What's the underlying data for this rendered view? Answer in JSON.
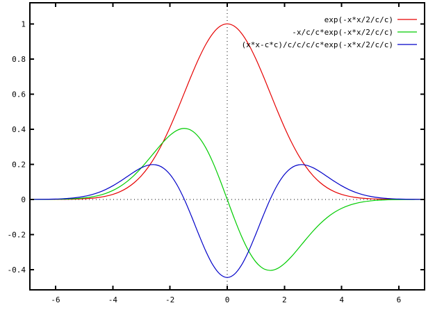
{
  "chart_data": {
    "type": "line",
    "title": "",
    "xlabel": "",
    "ylabel": "",
    "xlim": [
      -6.9,
      6.9
    ],
    "ylim": [
      -0.515,
      1.12
    ],
    "x_ticks": [
      -6,
      -4,
      -2,
      0,
      2,
      4,
      6
    ],
    "x_tick_labels": [
      "-6",
      "-4",
      "-2",
      "0",
      "2",
      "4",
      "6"
    ],
    "y_ticks": [
      -0.4,
      -0.2,
      0,
      0.2,
      0.4,
      0.6,
      0.8,
      1
    ],
    "y_tick_labels": [
      "-0.4",
      "-0.2",
      "0",
      "0.2",
      "0.4",
      "0.6",
      "0.8",
      "1"
    ],
    "grid": false,
    "zeroaxis_dotted": true,
    "ticks_mirrored_inward": true,
    "legend_position": "top-right-inside",
    "background_color": "#ffffff",
    "axis_color": "#000000",
    "parameter_c": 1.5,
    "x": [
      -6.92,
      -6.75,
      -6.5,
      -6.25,
      -6,
      -5.75,
      -5.5,
      -5.25,
      -5,
      -4.75,
      -4.5,
      -4.25,
      -4,
      -3.75,
      -3.5,
      -3.25,
      -3,
      -2.75,
      -2.5,
      -2.25,
      -2,
      -1.75,
      -1.5,
      -1.25,
      -1,
      -0.75,
      -0.5,
      -0.25,
      0,
      0.25,
      0.5,
      0.75,
      1,
      1.25,
      1.5,
      1.75,
      2,
      2.25,
      2.5,
      2.75,
      3,
      3.25,
      3.5,
      3.75,
      4,
      4.25,
      4.5,
      4.75,
      5,
      5.25,
      5.5,
      5.75,
      6,
      6.25,
      6.5,
      6.75,
      6.92
    ],
    "series": [
      {
        "name": "exp(-x*x/2/c/c)",
        "color": "#e60000",
        "values": [
          2e-05,
          4e-05,
          8e-05,
          0.00017,
          0.00034,
          0.00064,
          0.0012,
          0.00219,
          0.00387,
          0.00665,
          0.01111,
          0.01808,
          0.02856,
          0.04394,
          0.06572,
          0.09563,
          0.13534,
          0.1863,
          0.24935,
          0.32465,
          0.41111,
          0.50637,
          0.60653,
          0.70665,
          0.80074,
          0.8825,
          0.94596,
          0.98621,
          1,
          0.98621,
          0.94596,
          0.8825,
          0.80074,
          0.70665,
          0.60653,
          0.50637,
          0.41111,
          0.32465,
          0.24935,
          0.1863,
          0.13534,
          0.09563,
          0.06572,
          0.04394,
          0.02856,
          0.01808,
          0.01111,
          0.00665,
          0.00387,
          0.00219,
          0.0012,
          0.00064,
          0.00034,
          0.00017,
          8e-05,
          4e-05,
          2e-05
        ]
      },
      {
        "name": "-x/c/c*exp(-x*x/2/c/c)",
        "color": "#00cc00",
        "values": [
          7e-05,
          0.00012,
          0.00024,
          0.00047,
          0.00089,
          0.00165,
          0.00293,
          0.00511,
          0.0086,
          0.01404,
          0.02222,
          0.03415,
          0.05077,
          0.07323,
          0.10223,
          0.13813,
          0.18045,
          0.2277,
          0.27706,
          0.32465,
          0.36543,
          0.39384,
          0.40435,
          0.39258,
          0.35588,
          0.29417,
          0.21021,
          0.10958,
          0,
          -0.10958,
          -0.21021,
          -0.29417,
          -0.35588,
          -0.39258,
          -0.40435,
          -0.39384,
          -0.36543,
          -0.32465,
          -0.27706,
          -0.2277,
          -0.18045,
          -0.13813,
          -0.10223,
          -0.07323,
          -0.05077,
          -0.03415,
          -0.02222,
          -0.01404,
          -0.0086,
          -0.00511,
          -0.00293,
          -0.00165,
          -0.00089,
          -0.00047,
          -0.00024,
          -0.00012,
          -7e-05
        ]
      },
      {
        "name": "(x*x-c*c)/c/c/c/c*exp(-x*x/2/c/c)",
        "color": "#0000c8",
        "values": [
          0.00022,
          0.00034,
          0.00066,
          0.00124,
          0.00223,
          0.00393,
          0.00664,
          0.01095,
          0.01739,
          0.02668,
          0.0395,
          0.05647,
          0.07757,
          0.10252,
          0.12982,
          0.15702,
          0.18045,
          0.1955,
          0.19702,
          0.18036,
          0.14211,
          0.08127,
          0,
          -0.09596,
          -0.19771,
          -0.29417,
          -0.37371,
          -0.42614,
          -0.44444,
          -0.42614,
          -0.37371,
          -0.29417,
          -0.19771,
          -0.09596,
          0,
          0.08127,
          0.14211,
          0.18036,
          0.19702,
          0.1955,
          0.18045,
          0.15702,
          0.12982,
          0.10252,
          0.07757,
          0.05647,
          0.0395,
          0.02668,
          0.01739,
          0.01095,
          0.00664,
          0.00393,
          0.00223,
          0.00124,
          0.00066,
          0.00034,
          0.00022
        ]
      }
    ]
  }
}
